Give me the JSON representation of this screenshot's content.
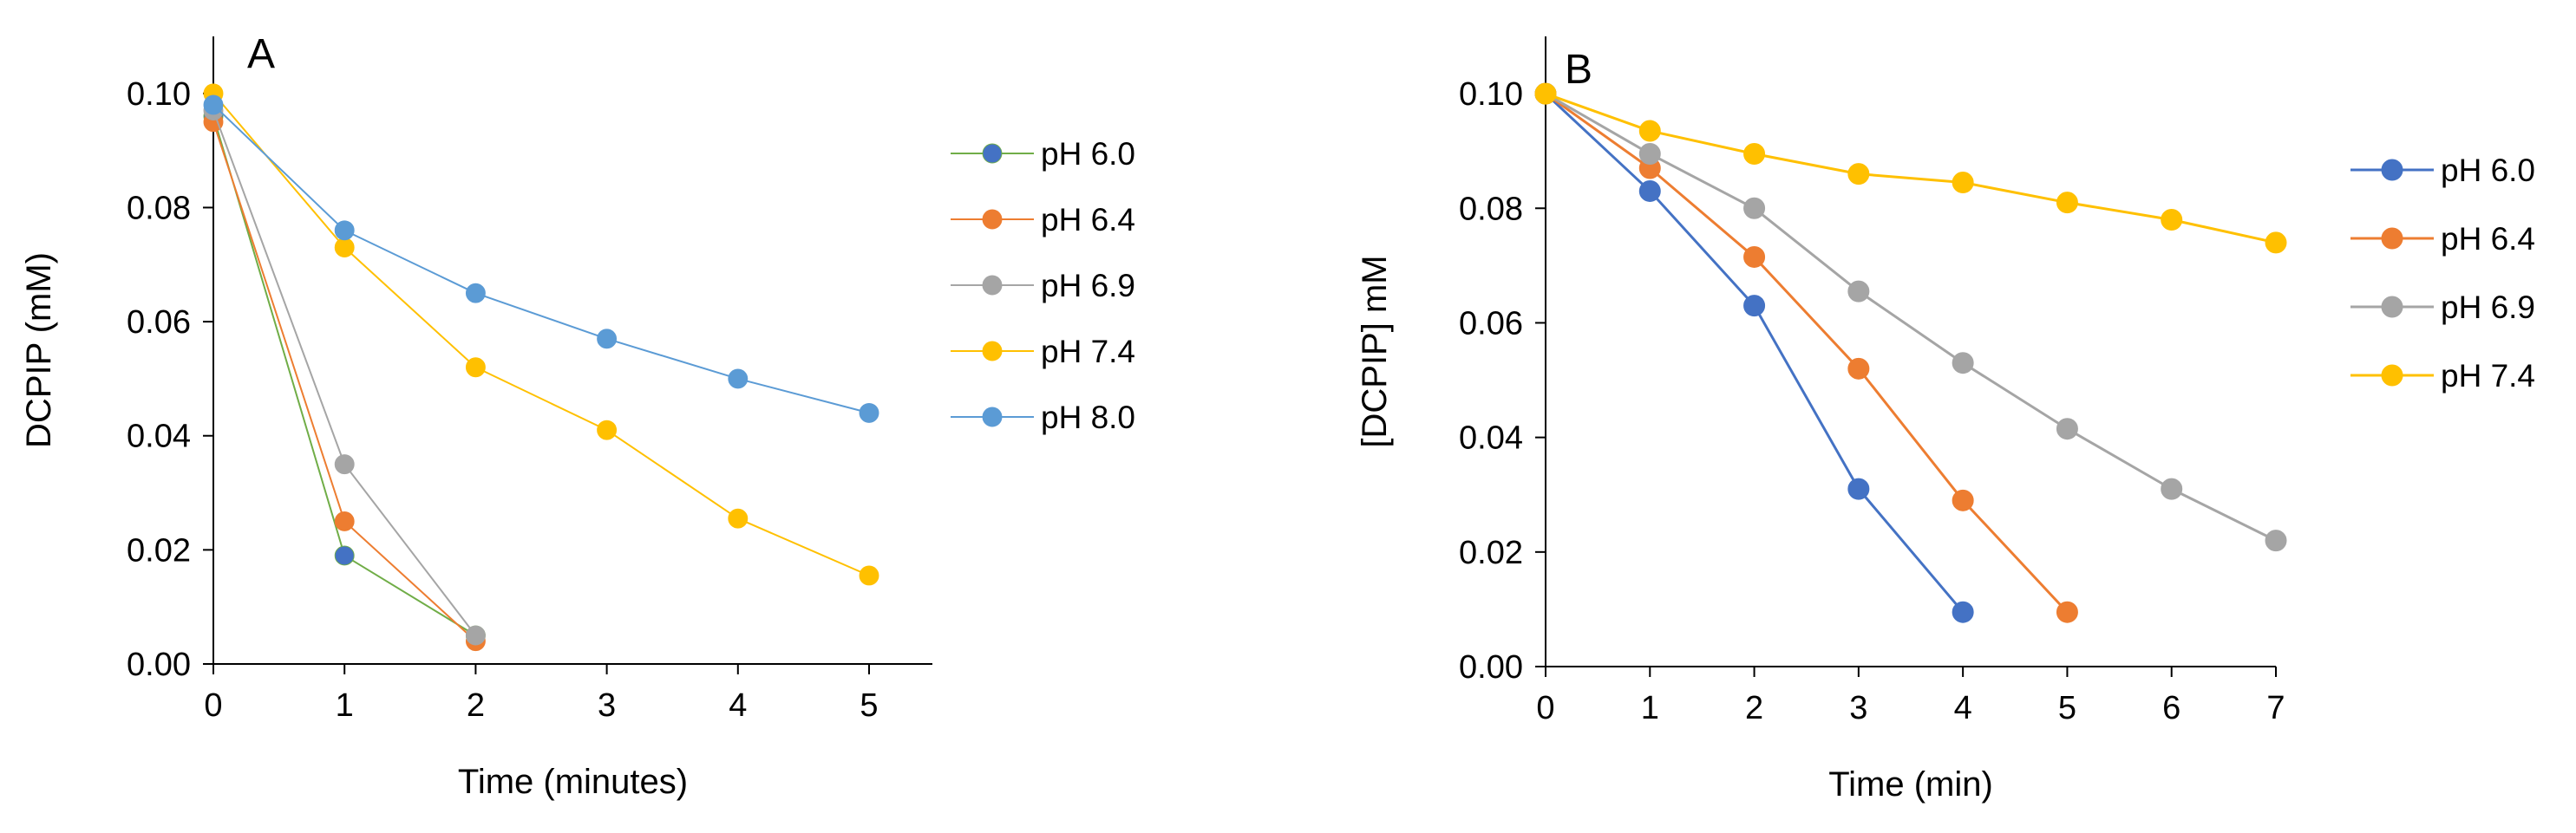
{
  "chart_data": [
    {
      "type": "line",
      "panel_label": "A",
      "xlabel": "Time (minutes)",
      "ylabel": "DCPIP (mM)",
      "xlim": [
        0,
        5.5
      ],
      "ylim": [
        0,
        0.11
      ],
      "x_ticks": [
        0,
        1,
        2,
        3,
        4,
        5
      ],
      "y_ticks": [
        0,
        0.02,
        0.04,
        0.06,
        0.08,
        0.1
      ],
      "y_tick_labels": [
        "0.00",
        "0.02",
        "0.04",
        "0.06",
        "0.08",
        "0.10"
      ],
      "grid": false,
      "legend_position": "right",
      "series": [
        {
          "name": "pH 6.0",
          "color": "#70AD47",
          "marker_color": "#4472C4",
          "line_width": 2,
          "x": [
            0,
            1,
            2
          ],
          "values": [
            0.096,
            0.019,
            0.005
          ]
        },
        {
          "name": "pH 6.4",
          "color": "#ED7D31",
          "line_width": 2,
          "x": [
            0,
            1,
            2
          ],
          "values": [
            0.095,
            0.025,
            0.004
          ]
        },
        {
          "name": "pH 6.9",
          "color": "#A5A5A5",
          "line_width": 2,
          "x": [
            0,
            1,
            2
          ],
          "values": [
            0.097,
            0.035,
            0.005
          ]
        },
        {
          "name": "pH 7.4",
          "color": "#FFC000",
          "line_width": 2,
          "x": [
            0,
            1,
            2,
            3,
            4,
            5
          ],
          "values": [
            0.1,
            0.073,
            0.052,
            0.041,
            0.0255,
            0.0155
          ]
        },
        {
          "name": "pH 8.0",
          "color": "#5B9BD5",
          "line_width": 2,
          "x": [
            0,
            1,
            2,
            3,
            4,
            5
          ],
          "values": [
            0.098,
            0.076,
            0.065,
            0.057,
            0.05,
            0.044
          ]
        }
      ]
    },
    {
      "type": "line",
      "panel_label": "B",
      "xlabel": "Time (min)",
      "ylabel": "[DCPIP] mM",
      "xlim": [
        0,
        7
      ],
      "ylim": [
        0,
        0.11
      ],
      "x_ticks": [
        0,
        1,
        2,
        3,
        4,
        5,
        6,
        7
      ],
      "y_ticks": [
        0,
        0.02,
        0.04,
        0.06,
        0.08,
        0.1
      ],
      "y_tick_labels": [
        "0.00",
        "0.02",
        "0.04",
        "0.06",
        "0.08",
        "0.10"
      ],
      "grid": false,
      "legend_position": "right",
      "series": [
        {
          "name": "pH 6.0",
          "color": "#4472C4",
          "line_width": 3,
          "x": [
            0,
            1,
            2,
            3,
            4
          ],
          "values": [
            0.1,
            0.083,
            0.063,
            0.031,
            0.0095
          ]
        },
        {
          "name": "pH 6.4",
          "color": "#ED7D31",
          "line_width": 3,
          "x": [
            0,
            1,
            2,
            3,
            4,
            5
          ],
          "values": [
            0.1,
            0.087,
            0.0715,
            0.052,
            0.029,
            0.0095
          ]
        },
        {
          "name": "pH 6.9",
          "color": "#A5A5A5",
          "line_width": 3,
          "x": [
            0,
            1,
            2,
            3,
            4,
            5,
            6,
            7
          ],
          "values": [
            0.1,
            0.0895,
            0.08,
            0.0655,
            0.053,
            0.0415,
            0.031,
            0.022
          ]
        },
        {
          "name": "pH 7.4",
          "color": "#FFC000",
          "line_width": 3,
          "x": [
            0,
            1,
            2,
            3,
            4,
            5,
            6,
            7
          ],
          "values": [
            0.1,
            0.0935,
            0.0895,
            0.086,
            0.0845,
            0.081,
            0.078,
            0.074
          ]
        }
      ]
    }
  ]
}
